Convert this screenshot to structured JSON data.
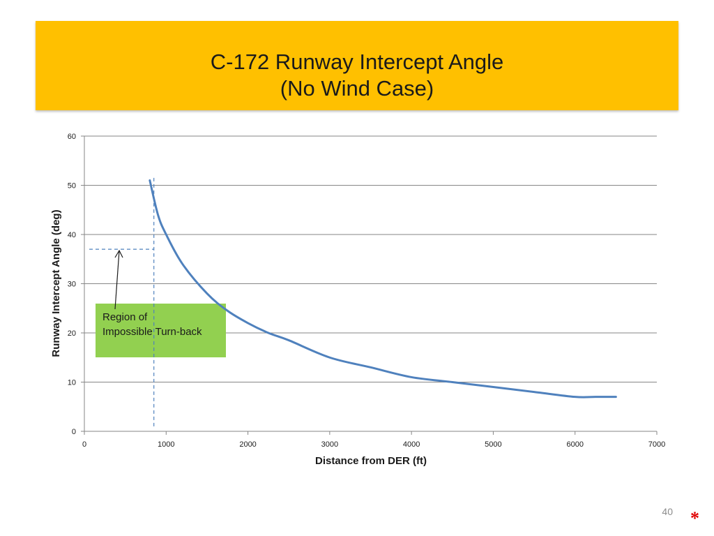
{
  "slide": {
    "title_line1": "C-172 Runway Intercept Angle",
    "title_line2": "(No Wind Case)",
    "slide_number": "40",
    "footnote_mark": "*",
    "banner_color": "#FFC000"
  },
  "annotation": {
    "line1": "Region of",
    "line2": "Impossible Turn-back",
    "box_color": "#92D050",
    "marker_x": 850,
    "marker_y": 37
  },
  "chart_data": {
    "type": "line",
    "title": "",
    "xlabel": "Distance from DER (ft)",
    "ylabel": "Runway Intercept Angle (deg)",
    "xlim": [
      0,
      7000
    ],
    "ylim": [
      0,
      60
    ],
    "x_ticks": [
      0,
      1000,
      2000,
      3000,
      4000,
      5000,
      6000,
      7000
    ],
    "y_ticks": [
      0,
      10,
      20,
      30,
      40,
      50,
      60
    ],
    "grid": "horizontal",
    "legend": "none",
    "series": [
      {
        "color": "#4F81BD",
        "x": [
          800,
          900,
          1000,
          1200,
          1500,
          1750,
          2000,
          2250,
          2500,
          3000,
          3500,
          4000,
          4500,
          5000,
          5500,
          6000,
          6250,
          6500
        ],
        "y": [
          51,
          44,
          40,
          34,
          28,
          24.5,
          22,
          20,
          18.5,
          15,
          13,
          11,
          10,
          9,
          8,
          7,
          7,
          7
        ]
      }
    ]
  }
}
